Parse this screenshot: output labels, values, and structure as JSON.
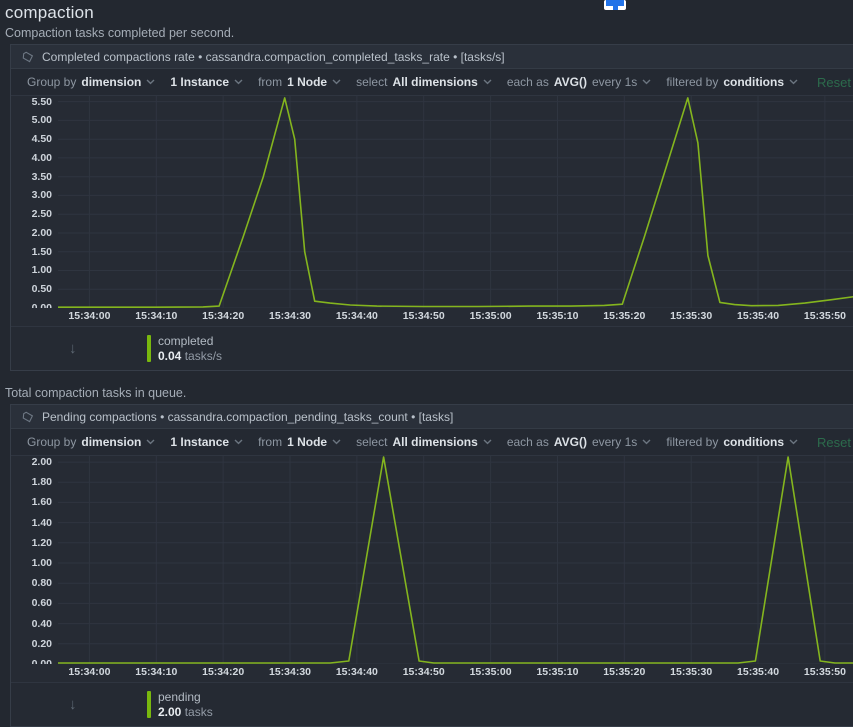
{
  "page": {
    "title": "compaction"
  },
  "toolbar": {
    "items": [
      {
        "prefix": "Group by",
        "value": "dimension",
        "suffix": ""
      },
      {
        "prefix": "",
        "value": "1 Instance",
        "suffix": ""
      },
      {
        "prefix": "from",
        "value": "1 Node",
        "suffix": ""
      },
      {
        "prefix": "select",
        "value": "All dimensions",
        "suffix": ""
      },
      {
        "prefix": "each as",
        "value": "AVG()",
        "suffix": "every 1s"
      },
      {
        "prefix": "filtered by",
        "value": "conditions",
        "suffix": ""
      }
    ],
    "reset_label": "Reset"
  },
  "charts": [
    {
      "section_subtitle": "Compaction tasks completed per second.",
      "header_label": "Completed compactions rate • cassandra.compaction_completed_tasks_rate • [tasks/s]",
      "legend": {
        "arrow": "↓",
        "name": "completed",
        "value": "0.04",
        "unit": "tasks/s",
        "color": "#79b80e"
      }
    },
    {
      "section_subtitle": "Total compaction tasks in queue.",
      "header_label": "Pending compactions • cassandra.compaction_pending_tasks_count • [tasks]",
      "legend": {
        "arrow": "↓",
        "name": "pending",
        "value": "2.00",
        "unit": "tasks",
        "color": "#79b80e"
      }
    }
  ],
  "chart_data": [
    {
      "type": "line",
      "title": "Completed compactions rate",
      "context": "cassandra.compaction_completed_tasks_rate",
      "ylabel": "tasks/s",
      "grid": true,
      "legend_position": "bottom",
      "ylim": [
        0,
        5.65
      ],
      "y_ticks": [
        5.5,
        5.0,
        4.5,
        4.0,
        3.5,
        3.0,
        2.5,
        2.0,
        1.5,
        1.0,
        0.5,
        0.0
      ],
      "x_domain": [
        -4.7,
        115.1
      ],
      "x_ticks": [
        {
          "t": 0,
          "label": "15:34:00"
        },
        {
          "t": 10,
          "label": "15:34:10"
        },
        {
          "t": 20,
          "label": "15:34:20"
        },
        {
          "t": 30,
          "label": "15:34:30"
        },
        {
          "t": 40,
          "label": "15:34:40"
        },
        {
          "t": 50,
          "label": "15:34:50"
        },
        {
          "t": 60,
          "label": "15:35:00"
        },
        {
          "t": 70,
          "label": "15:35:10"
        },
        {
          "t": 80,
          "label": "15:35:20"
        },
        {
          "t": 90,
          "label": "15:35:30"
        },
        {
          "t": 100,
          "label": "15:35:40"
        },
        {
          "t": 110,
          "label": "15:35:50"
        }
      ],
      "series": [
        {
          "name": "completed",
          "color": "#84b51e",
          "points": [
            [
              -4.7,
              0.02
            ],
            [
              10,
              0.02
            ],
            [
              17,
              0.03
            ],
            [
              19.4,
              0.05
            ],
            [
              23,
              1.9
            ],
            [
              26,
              3.5
            ],
            [
              29.2,
              5.6
            ],
            [
              30.7,
              4.5
            ],
            [
              32.2,
              1.5
            ],
            [
              33.7,
              0.18
            ],
            [
              36,
              0.13
            ],
            [
              39,
              0.08
            ],
            [
              43,
              0.05
            ],
            [
              50,
              0.04
            ],
            [
              58,
              0.04
            ],
            [
              66,
              0.05
            ],
            [
              72,
              0.05
            ],
            [
              77,
              0.07
            ],
            [
              79.7,
              0.1
            ],
            [
              83,
              1.9
            ],
            [
              86,
              3.6
            ],
            [
              89.5,
              5.6
            ],
            [
              91,
              4.4
            ],
            [
              92.5,
              1.4
            ],
            [
              94.3,
              0.15
            ],
            [
              96.5,
              0.09
            ],
            [
              99,
              0.06
            ],
            [
              103,
              0.07
            ],
            [
              107,
              0.13
            ],
            [
              111,
              0.22
            ],
            [
              115.1,
              0.32
            ]
          ]
        }
      ]
    },
    {
      "type": "line",
      "title": "Pending compactions",
      "context": "cassandra.compaction_pending_tasks_count",
      "ylabel": "tasks",
      "grid": true,
      "legend_position": "bottom",
      "ylim": [
        0,
        2.06
      ],
      "y_ticks": [
        2.0,
        1.8,
        1.6,
        1.4,
        1.2,
        1.0,
        0.8,
        0.6,
        0.4,
        0.2,
        0.0
      ],
      "x_domain": [
        -4.7,
        115.1
      ],
      "x_ticks": [
        {
          "t": 0,
          "label": "15:34:00"
        },
        {
          "t": 10,
          "label": "15:34:10"
        },
        {
          "t": 20,
          "label": "15:34:20"
        },
        {
          "t": 30,
          "label": "15:34:30"
        },
        {
          "t": 40,
          "label": "15:34:40"
        },
        {
          "t": 50,
          "label": "15:34:50"
        },
        {
          "t": 60,
          "label": "15:35:00"
        },
        {
          "t": 70,
          "label": "15:35:10"
        },
        {
          "t": 80,
          "label": "15:35:20"
        },
        {
          "t": 90,
          "label": "15:35:30"
        },
        {
          "t": 100,
          "label": "15:35:40"
        },
        {
          "t": 110,
          "label": "15:35:50"
        }
      ],
      "series": [
        {
          "name": "pending",
          "color": "#84b51e",
          "points": [
            [
              -4.7,
              0.01
            ],
            [
              36,
              0.01
            ],
            [
              38.8,
              0.03
            ],
            [
              44,
              2.05
            ],
            [
              49.3,
              0.03
            ],
            [
              51.5,
              0.01
            ],
            [
              97,
              0.01
            ],
            [
              99.6,
              0.03
            ],
            [
              104.5,
              2.05
            ],
            [
              109.3,
              0.03
            ],
            [
              111.5,
              0.01
            ],
            [
              115.1,
              0.01
            ]
          ]
        }
      ]
    }
  ]
}
